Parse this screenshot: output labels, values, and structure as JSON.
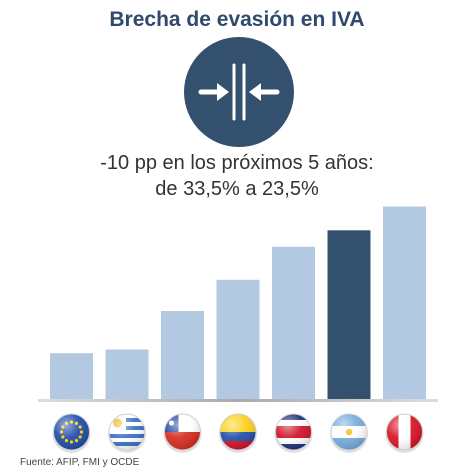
{
  "header": {
    "title": "Brecha de evasión en IVA",
    "subtitle_line1": "-10 pp en los próximos 5 años:",
    "subtitle_line2": "de 33,5% a 23,5%"
  },
  "badge": {
    "icon": "compress-arrows-icon",
    "color": "#34506f"
  },
  "footer": {
    "source": "Fuente: AFIP, FMI y OCDE"
  },
  "chart_data": {
    "type": "bar",
    "categories": [
      "Unión Europea",
      "Uruguay",
      "Chile",
      "Colombia",
      "Costa Rica",
      "Argentina",
      "Perú"
    ],
    "category_display": "flag icons",
    "values": [
      12.5,
      13.5,
      24,
      32.5,
      41.5,
      46,
      52.5
    ],
    "highlight_index": 5,
    "colors": {
      "bar": "#b3c9e1",
      "highlight": "#34506f"
    },
    "title": "Brecha de evasión en IVA",
    "xlabel": "",
    "ylabel": "",
    "ylim": [
      0,
      60
    ],
    "grid": false,
    "legend": "none"
  }
}
